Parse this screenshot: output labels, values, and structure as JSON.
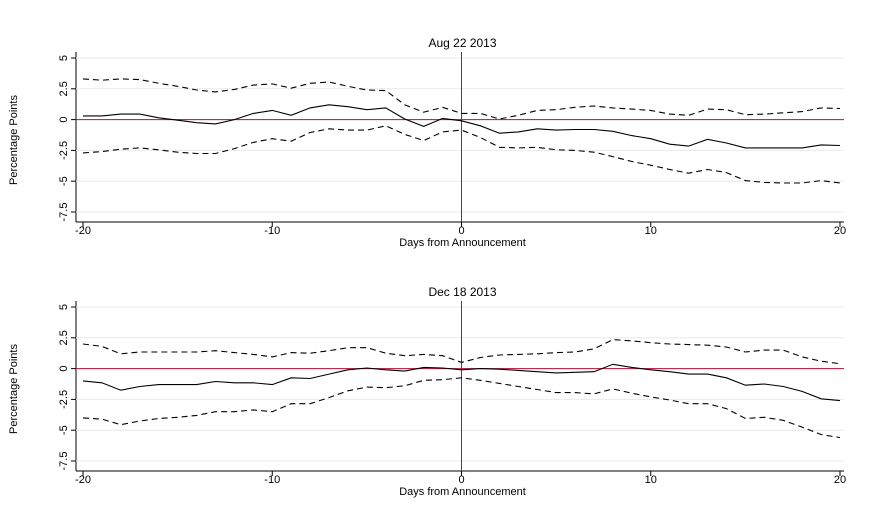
{
  "chart_data": [
    {
      "type": "line",
      "title": "Aug 22 2013",
      "xlabel": "Days from Announcement",
      "ylabel": "Percentage Points",
      "xlim": [
        -20,
        20
      ],
      "ylim": [
        -7.5,
        5
      ],
      "xticks": [
        "-20",
        "-10",
        "0",
        "10",
        "20"
      ],
      "yticks": [
        "-7.5",
        "-5",
        "-2.5",
        "0",
        "2.5",
        "5"
      ],
      "grid": true,
      "reference_lines": {
        "horizontal_y": 0,
        "vertical_x": 0,
        "color": "#b2103c"
      },
      "x": [
        -20,
        -19,
        -18,
        -17,
        -16,
        -15,
        -14,
        -13,
        -12,
        -11,
        -10,
        -9,
        -8,
        -7,
        -6,
        -5,
        -4,
        -3,
        -2,
        -1,
        0,
        1,
        2,
        3,
        4,
        5,
        6,
        7,
        8,
        9,
        10,
        11,
        12,
        13,
        14,
        15,
        16,
        17,
        18,
        19,
        20
      ],
      "series": [
        {
          "style": "solid",
          "values": [
            0.3,
            0.3,
            0.45,
            0.45,
            0.15,
            -0.05,
            -0.25,
            -0.35,
            0.0,
            0.5,
            0.75,
            0.35,
            0.95,
            1.2,
            1.05,
            0.8,
            0.95,
            0.05,
            -0.55,
            0.1,
            -0.1,
            -0.5,
            -1.1,
            -1.0,
            -0.75,
            -0.85,
            -0.8,
            -0.8,
            -0.95,
            -1.3,
            -1.55,
            -2.0,
            -2.15,
            -1.6,
            -1.9,
            -2.3,
            -2.3,
            -2.3,
            -2.3,
            -2.05,
            -2.1
          ]
        },
        {
          "style": "dashed",
          "values": [
            3.3,
            3.2,
            3.3,
            3.25,
            2.95,
            2.7,
            2.4,
            2.25,
            2.45,
            2.8,
            2.9,
            2.55,
            2.95,
            3.05,
            2.7,
            2.4,
            2.35,
            1.2,
            0.6,
            1.0,
            0.5,
            0.5,
            0.05,
            0.35,
            0.75,
            0.8,
            1.0,
            1.1,
            0.95,
            0.85,
            0.75,
            0.45,
            0.35,
            0.85,
            0.8,
            0.4,
            0.45,
            0.55,
            0.65,
            0.95,
            0.9
          ]
        },
        {
          "style": "dashed",
          "values": [
            -2.7,
            -2.6,
            -2.4,
            -2.3,
            -2.45,
            -2.65,
            -2.75,
            -2.75,
            -2.35,
            -1.85,
            -1.55,
            -1.75,
            -1.05,
            -0.75,
            -0.85,
            -0.85,
            -0.5,
            -1.2,
            -1.7,
            -1.0,
            -0.85,
            -1.45,
            -2.25,
            -2.3,
            -2.25,
            -2.45,
            -2.5,
            -2.65,
            -3.0,
            -3.4,
            -3.7,
            -4.05,
            -4.35,
            -4.05,
            -4.3,
            -4.95,
            -5.1,
            -5.15,
            -5.15,
            -4.95,
            -5.15
          ]
        }
      ]
    },
    {
      "type": "line",
      "title": "Dec 18 2013",
      "xlabel": "Days from Announcement",
      "ylabel": "Percentage Points",
      "xlim": [
        -20,
        20
      ],
      "ylim": [
        -7.5,
        5
      ],
      "xticks": [
        "-20",
        "-10",
        "0",
        "10",
        "20"
      ],
      "yticks": [
        "-7.5",
        "-5",
        "-2.5",
        "0",
        "2.5",
        "5"
      ],
      "grid": true,
      "reference_lines": {
        "horizontal_y": 0,
        "vertical_x": 0,
        "color": "#b2103c"
      },
      "x": [
        -20,
        -19,
        -18,
        -17,
        -16,
        -15,
        -14,
        -13,
        -12,
        -11,
        -10,
        -9,
        -8,
        -7,
        -6,
        -5,
        -4,
        -3,
        -2,
        -1,
        0,
        1,
        2,
        3,
        4,
        5,
        6,
        7,
        8,
        9,
        10,
        11,
        12,
        13,
        14,
        15,
        16,
        17,
        18,
        19,
        20
      ],
      "series": [
        {
          "style": "solid",
          "values": [
            -1.0,
            -1.15,
            -1.75,
            -1.45,
            -1.3,
            -1.3,
            -1.3,
            -1.05,
            -1.15,
            -1.15,
            -1.3,
            -0.75,
            -0.8,
            -0.45,
            -0.1,
            0.05,
            -0.1,
            -0.2,
            0.1,
            0.05,
            -0.1,
            0.0,
            -0.05,
            -0.15,
            -0.25,
            -0.35,
            -0.3,
            -0.25,
            0.35,
            0.1,
            -0.1,
            -0.25,
            -0.45,
            -0.45,
            -0.75,
            -1.35,
            -1.25,
            -1.45,
            -1.85,
            -2.45,
            -2.6
          ]
        },
        {
          "style": "dashed",
          "values": [
            2.0,
            1.8,
            1.2,
            1.35,
            1.35,
            1.35,
            1.35,
            1.45,
            1.3,
            1.15,
            0.95,
            1.3,
            1.25,
            1.45,
            1.7,
            1.7,
            1.25,
            1.05,
            1.15,
            1.05,
            0.5,
            0.9,
            1.1,
            1.15,
            1.2,
            1.3,
            1.35,
            1.6,
            2.35,
            2.25,
            2.1,
            2.0,
            1.95,
            1.9,
            1.75,
            1.35,
            1.5,
            1.5,
            0.95,
            0.6,
            0.4
          ]
        },
        {
          "style": "dashed",
          "values": [
            -4.0,
            -4.1,
            -4.55,
            -4.25,
            -4.05,
            -3.95,
            -3.8,
            -3.5,
            -3.5,
            -3.35,
            -3.5,
            -2.85,
            -2.85,
            -2.35,
            -1.8,
            -1.5,
            -1.55,
            -1.4,
            -0.95,
            -0.9,
            -0.75,
            -0.95,
            -1.2,
            -1.45,
            -1.7,
            -1.95,
            -1.95,
            -2.05,
            -1.65,
            -2.0,
            -2.3,
            -2.55,
            -2.85,
            -2.85,
            -3.25,
            -4.05,
            -3.95,
            -4.2,
            -4.75,
            -5.35,
            -5.6
          ]
        }
      ]
    }
  ]
}
